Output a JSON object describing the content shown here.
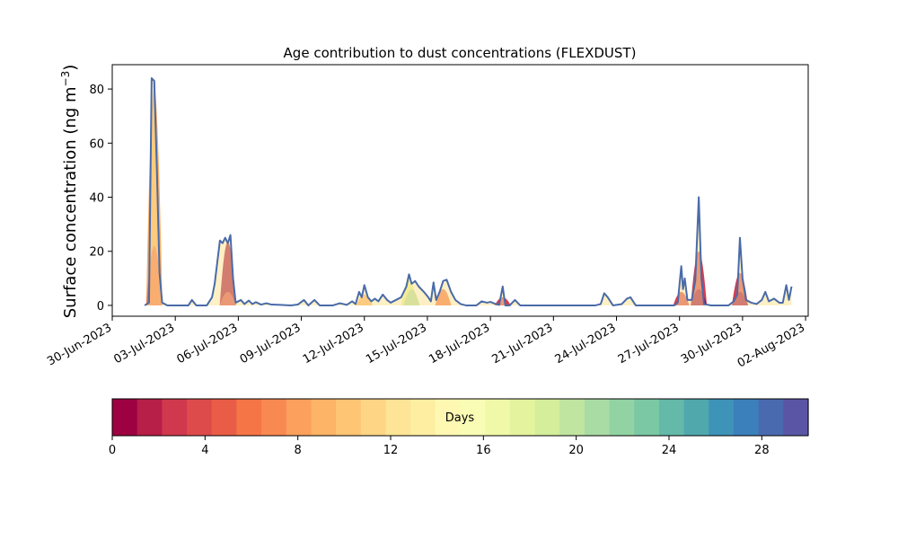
{
  "chart_data": {
    "type": "area",
    "title": "Age contribution to dust concentrations (FLEXDUST)",
    "ylabel": {
      "text": "Surface concentration (ng m",
      "unit_sup": "−3",
      "close": ")"
    },
    "xlabel": "",
    "ylim": [
      -4,
      89
    ],
    "xlim": [
      "2023-06-30T00:00",
      "2023-08-02T03:00"
    ],
    "yticks": [
      0,
      20,
      40,
      60,
      80
    ],
    "xticks": [
      {
        "date": "2023-06-30",
        "label": "30-Jun-2023"
      },
      {
        "date": "2023-07-03",
        "label": "03-Jul-2023"
      },
      {
        "date": "2023-07-06",
        "label": "06-Jul-2023"
      },
      {
        "date": "2023-07-09",
        "label": "09-Jul-2023"
      },
      {
        "date": "2023-07-12",
        "label": "12-Jul-2023"
      },
      {
        "date": "2023-07-15",
        "label": "15-Jul-2023"
      },
      {
        "date": "2023-07-18",
        "label": "18-Jul-2023"
      },
      {
        "date": "2023-07-21",
        "label": "21-Jul-2023"
      },
      {
        "date": "2023-07-24",
        "label": "24-Jul-2023"
      },
      {
        "date": "2023-07-27",
        "label": "27-Jul-2023"
      },
      {
        "date": "2023-07-30",
        "label": "30-Jul-2023"
      },
      {
        "date": "2023-08-02",
        "label": "02-Aug-2023"
      }
    ],
    "grid": false,
    "total_line_color": "#4a6ba8",
    "total": [
      [
        "2023-07-01T13:00",
        0
      ],
      [
        "2023-07-01T18:00",
        1
      ],
      [
        "2023-07-01T21:00",
        84
      ],
      [
        "2023-07-02T00:00",
        83
      ],
      [
        "2023-07-02T03:00",
        50
      ],
      [
        "2023-07-02T06:00",
        12
      ],
      [
        "2023-07-02T09:00",
        1
      ],
      [
        "2023-07-02T15:00",
        0
      ],
      [
        "2023-07-03T15:00",
        0
      ],
      [
        "2023-07-03T19:00",
        2
      ],
      [
        "2023-07-04T00:00",
        0
      ],
      [
        "2023-07-04T12:00",
        0
      ],
      [
        "2023-07-04T18:00",
        3
      ],
      [
        "2023-07-04T21:00",
        8
      ],
      [
        "2023-07-05T00:00",
        16
      ],
      [
        "2023-07-05T03:00",
        24
      ],
      [
        "2023-07-05T06:00",
        23
      ],
      [
        "2023-07-05T09:00",
        25
      ],
      [
        "2023-07-05T12:00",
        23
      ],
      [
        "2023-07-05T15:00",
        26
      ],
      [
        "2023-07-05T18:00",
        10
      ],
      [
        "2023-07-05T21:00",
        1
      ],
      [
        "2023-07-06T03:00",
        2
      ],
      [
        "2023-07-06T07:00",
        0.5
      ],
      [
        "2023-07-06T12:00",
        1.8
      ],
      [
        "2023-07-06T16:00",
        0.5
      ],
      [
        "2023-07-06T20:00",
        1.2
      ],
      [
        "2023-07-07T02:00",
        0.3
      ],
      [
        "2023-07-07T08:00",
        0.8
      ],
      [
        "2023-07-07T14:00",
        0.3
      ],
      [
        "2023-07-08T00:00",
        0.2
      ],
      [
        "2023-07-08T12:00",
        0
      ],
      [
        "2023-07-08T20:00",
        0.3
      ],
      [
        "2023-07-09T03:00",
        2
      ],
      [
        "2023-07-09T08:00",
        0
      ],
      [
        "2023-07-09T15:00",
        2
      ],
      [
        "2023-07-09T21:00",
        0
      ],
      [
        "2023-07-10T12:00",
        0
      ],
      [
        "2023-07-10T20:00",
        0.8
      ],
      [
        "2023-07-11T04:00",
        0.2
      ],
      [
        "2023-07-11T10:00",
        1.5
      ],
      [
        "2023-07-11T14:00",
        0.5
      ],
      [
        "2023-07-11T18:00",
        5
      ],
      [
        "2023-07-11T21:00",
        3
      ],
      [
        "2023-07-12T00:00",
        7.5
      ],
      [
        "2023-07-12T04:00",
        3
      ],
      [
        "2023-07-12T08:00",
        1.5
      ],
      [
        "2023-07-12T12:00",
        2.5
      ],
      [
        "2023-07-12T16:00",
        1.5
      ],
      [
        "2023-07-12T21:00",
        4
      ],
      [
        "2023-07-13T02:00",
        2
      ],
      [
        "2023-07-13T06:00",
        1
      ],
      [
        "2023-07-13T12:00",
        2
      ],
      [
        "2023-07-13T18:00",
        3
      ],
      [
        "2023-07-14T00:00",
        7
      ],
      [
        "2023-07-14T03:00",
        11.5
      ],
      [
        "2023-07-14T06:00",
        8
      ],
      [
        "2023-07-14T10:00",
        9
      ],
      [
        "2023-07-14T14:00",
        7
      ],
      [
        "2023-07-14T20:00",
        5
      ],
      [
        "2023-07-15T01:00",
        3
      ],
      [
        "2023-07-15T04:00",
        1.5
      ],
      [
        "2023-07-15T07:00",
        8.5
      ],
      [
        "2023-07-15T10:00",
        2
      ],
      [
        "2023-07-15T14:00",
        5
      ],
      [
        "2023-07-15T18:00",
        9
      ],
      [
        "2023-07-15T22:00",
        9.5
      ],
      [
        "2023-07-16T03:00",
        5
      ],
      [
        "2023-07-16T08:00",
        2
      ],
      [
        "2023-07-16T14:00",
        0.5
      ],
      [
        "2023-07-16T20:00",
        0
      ],
      [
        "2023-07-17T08:00",
        0
      ],
      [
        "2023-07-17T14:00",
        1.5
      ],
      [
        "2023-07-17T20:00",
        1
      ],
      [
        "2023-07-18T00:00",
        1.3
      ],
      [
        "2023-07-18T06:00",
        0.5
      ],
      [
        "2023-07-18T10:00",
        0.2
      ],
      [
        "2023-07-18T14:00",
        7
      ],
      [
        "2023-07-18T17:00",
        0
      ],
      [
        "2023-07-18T22:00",
        0
      ],
      [
        "2023-07-19T04:00",
        2
      ],
      [
        "2023-07-19T10:00",
        0
      ],
      [
        "2023-07-23T00:00",
        0
      ],
      [
        "2023-07-23T06:00",
        0.5
      ],
      [
        "2023-07-23T10:00",
        4.5
      ],
      [
        "2023-07-23T14:00",
        3
      ],
      [
        "2023-07-23T20:00",
        0
      ],
      [
        "2023-07-24T06:00",
        0.5
      ],
      [
        "2023-07-24T12:00",
        2.5
      ],
      [
        "2023-07-24T16:00",
        3
      ],
      [
        "2023-07-24T22:00",
        0
      ],
      [
        "2023-07-26T18:00",
        0
      ],
      [
        "2023-07-26T22:00",
        1
      ],
      [
        "2023-07-27T02:00",
        14.5
      ],
      [
        "2023-07-27T04:00",
        6
      ],
      [
        "2023-07-27T06:00",
        10
      ],
      [
        "2023-07-27T09:00",
        2
      ],
      [
        "2023-07-27T14:00",
        2
      ],
      [
        "2023-07-27T18:00",
        9
      ],
      [
        "2023-07-27T22:00",
        40
      ],
      [
        "2023-07-28T01:00",
        10
      ],
      [
        "2023-07-28T04:00",
        0.5
      ],
      [
        "2023-07-28T12:00",
        0
      ],
      [
        "2023-07-29T08:00",
        0
      ],
      [
        "2023-07-29T14:00",
        1.5
      ],
      [
        "2023-07-29T18:00",
        4
      ],
      [
        "2023-07-29T21:00",
        25
      ],
      [
        "2023-07-30T00:00",
        10
      ],
      [
        "2023-07-30T04:00",
        2
      ],
      [
        "2023-07-30T10:00",
        1
      ],
      [
        "2023-07-30T16:00",
        0.5
      ],
      [
        "2023-07-30T22:00",
        2
      ],
      [
        "2023-07-31T02:00",
        5
      ],
      [
        "2023-07-31T06:00",
        1.5
      ],
      [
        "2023-07-31T12:00",
        2.5
      ],
      [
        "2023-07-31T18:00",
        1
      ],
      [
        "2023-07-31T22:00",
        1
      ],
      [
        "2023-08-01T02:00",
        7.5
      ],
      [
        "2023-08-01T05:00",
        2
      ],
      [
        "2023-08-01T08:00",
        7
      ]
    ],
    "age_peaks": [
      {
        "date": "2023-07-02T00:00",
        "height": 80,
        "color": "#fdae61"
      },
      {
        "date": "2023-07-02T00:00",
        "height": 22,
        "color": "#f46d43"
      },
      {
        "date": "2023-07-05T12:00",
        "height": 23.5,
        "color": "#9e0142"
      },
      {
        "date": "2023-07-05T12:00",
        "height": 5,
        "color": "#d53e4f"
      },
      {
        "date": "2023-07-12T00:00",
        "height": 4,
        "color": "#fdae61"
      },
      {
        "date": "2023-07-14T03:00",
        "height": 10,
        "color": "#e6f598"
      },
      {
        "date": "2023-07-14T06:00",
        "height": 6,
        "color": "#abdda4"
      },
      {
        "date": "2023-07-15T18:00",
        "height": 6,
        "color": "#f46d43"
      },
      {
        "date": "2023-07-18T14:00",
        "height": 3,
        "color": "#d53e4f"
      },
      {
        "date": "2023-07-27T02:00",
        "height": 5,
        "color": "#d53e4f"
      },
      {
        "date": "2023-07-27T22:00",
        "height": 20,
        "color": "#d53e4f"
      },
      {
        "date": "2023-07-27T22:00",
        "height": 6,
        "color": "#9e0142"
      },
      {
        "date": "2023-07-29T21:00",
        "height": 12,
        "color": "#d53e4f"
      },
      {
        "date": "2023-07-29T21:00",
        "height": 5,
        "color": "#9e0142"
      }
    ],
    "colorbar": {
      "label": "Days",
      "range": [
        0,
        30
      ],
      "ticks": [
        0,
        4,
        8,
        12,
        16,
        20,
        24,
        28
      ],
      "colors": [
        "#9e0142",
        "#b71e48",
        "#cf384d",
        "#de4b4b",
        "#e95d46",
        "#f57547",
        "#f88950",
        "#fca05d",
        "#fdb466",
        "#fec574",
        "#fed585",
        "#fee496",
        "#feeea2",
        "#fff8b3",
        "#f9fcb5",
        "#f0f9a8",
        "#e4f49e",
        "#d4ee9b",
        "#bfe5a0",
        "#a9dca4",
        "#92d3a4",
        "#7bc8a4",
        "#65b9a8",
        "#50a8ad",
        "#3e93b9",
        "#3b80ba",
        "#4a6ab0",
        "#5a56a5"
      ]
    }
  }
}
